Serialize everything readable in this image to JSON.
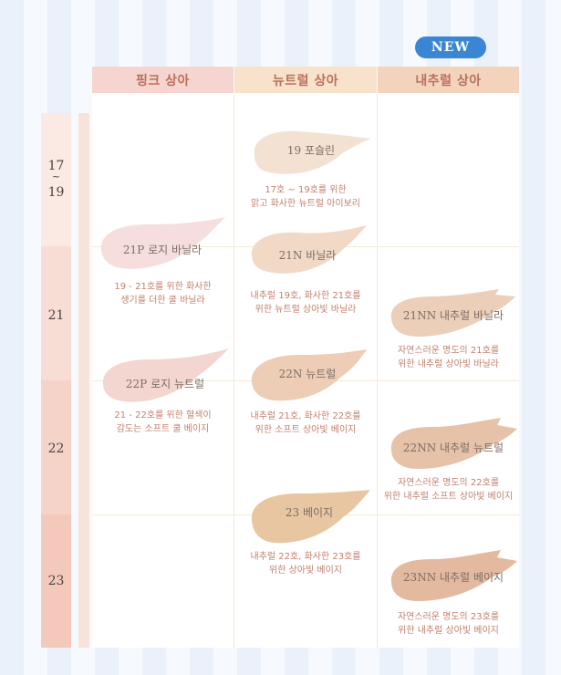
{
  "badge": "NEW",
  "columns": [
    "핑크 상아",
    "뉴트럴 상아",
    "내추럴 상아"
  ],
  "colors": {
    "pink_header": "#f6d4cf",
    "neutral_header": "#f8e2cc",
    "natural_header": "#f4d3bc",
    "header_text": "#b9705c",
    "badge": "#3a86d3",
    "description": "#c2806e"
  },
  "shade_levels": {
    "l17": "17",
    "tilde": "~",
    "l19": "19",
    "l21": "21",
    "l22": "22",
    "l23": "23"
  },
  "products": [
    {
      "name": "19 포슬린",
      "desc1": "17호 ~ 19호를 위한",
      "desc2": "맑고 화사한 뉴트럴 아이보리",
      "color": "#f3e2d2"
    },
    {
      "name": "21P 로지 바닐라",
      "desc1": "19 - 21호를 위한 화사한",
      "desc2": "생기를 더한 쿨 바닐라",
      "color": "#f6dede"
    },
    {
      "name": "21N 바닐라",
      "desc1": "내추럴 19호, 화사한 21호를",
      "desc2": "위한 뉴트럴 상아빛 바닐라",
      "color": "#f1d9c6"
    },
    {
      "name": "21NN 내추럴 바닐라",
      "desc1": "자연스러운 명도의 21호를",
      "desc2": "위한 내추럴 상아빛 바닐라",
      "color": "#ebcfb9"
    },
    {
      "name": "22P 로지 뉴트럴",
      "desc1": "21 - 22호를 위한 혈색이",
      "desc2": "감도는 소프트 쿨 베이지",
      "color": "#f3d6cf"
    },
    {
      "name": "22N 뉴트럴",
      "desc1": "내추럴 21호, 화사한 22호를",
      "desc2": "위한 소프트 상아빛 베이지",
      "color": "#edcdb6"
    },
    {
      "name": "22NN 내추럴 뉴트럴",
      "desc1": "자연스러운 명도의 22호를",
      "desc2": "위한 내추럴 소프트 상아빛 베이지",
      "color": "#e6c2a8"
    },
    {
      "name": "23 베이지",
      "desc1": "내추럴 22호, 화사한 23호를",
      "desc2": "위한 상아빛 베이지",
      "color": "#e8c6a2"
    },
    {
      "name": "23NN 내추럴 베이지",
      "desc1": "자연스러운 명도의 23호를",
      "desc2": "위한 내추럴 상아빛 베이지",
      "color": "#e3b9a0"
    }
  ]
}
